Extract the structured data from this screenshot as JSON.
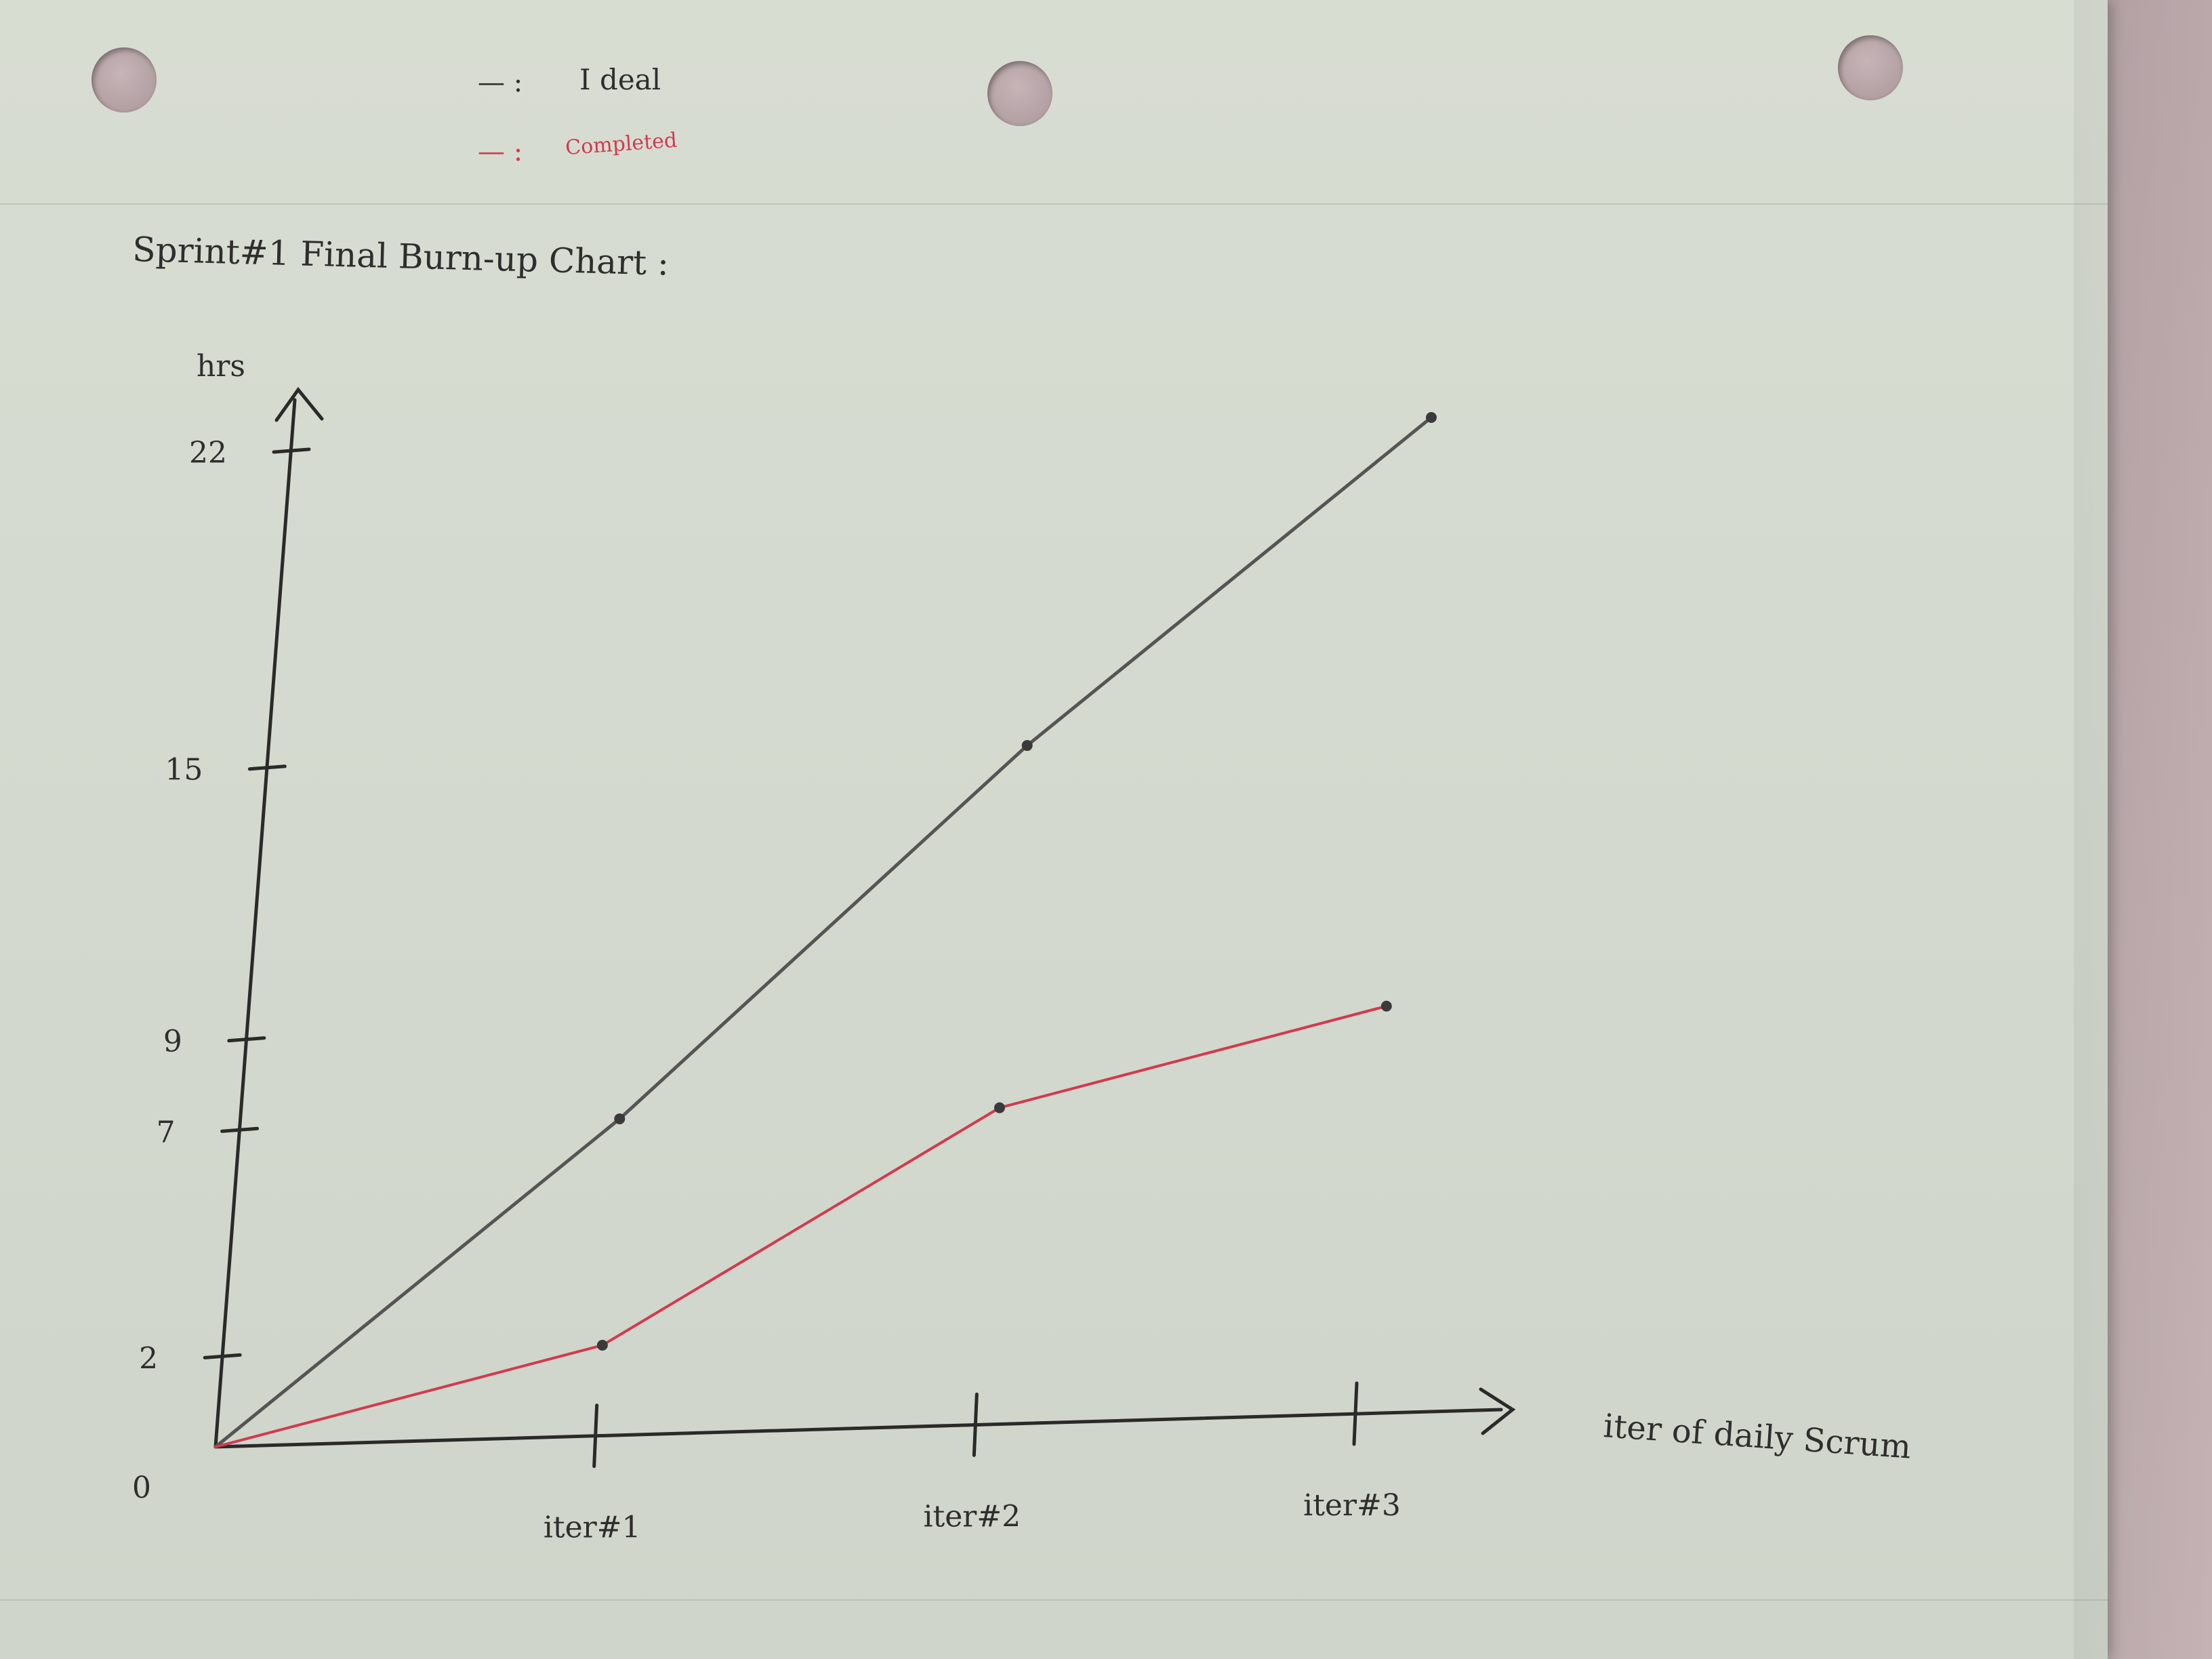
{
  "chart_data": {
    "type": "line",
    "title": "Sprint#1 Final Burn-up Chart :",
    "xlabel": "iter of daily Scrum",
    "ylabel": "hrs",
    "categories": [
      "0",
      "iter#1",
      "iter#2",
      "iter#3"
    ],
    "x": [
      0,
      1,
      2,
      3
    ],
    "yticks": [
      0,
      2,
      7,
      9,
      15,
      22
    ],
    "ylim": [
      0,
      22
    ],
    "series": [
      {
        "name": "Ideal",
        "color": "#555555",
        "values": [
          0,
          7,
          15,
          22
        ]
      },
      {
        "name": "Completed",
        "color": "#d23a4e",
        "values": [
          0,
          2,
          7,
          9
        ]
      }
    ],
    "legend": {
      "placement": "top",
      "items": [
        {
          "marker": "— :",
          "label": "I deal",
          "color": "#2e2e2e"
        },
        {
          "marker": "— :",
          "label": "Completed",
          "color": "#d23a4e"
        }
      ]
    },
    "grid": false
  }
}
